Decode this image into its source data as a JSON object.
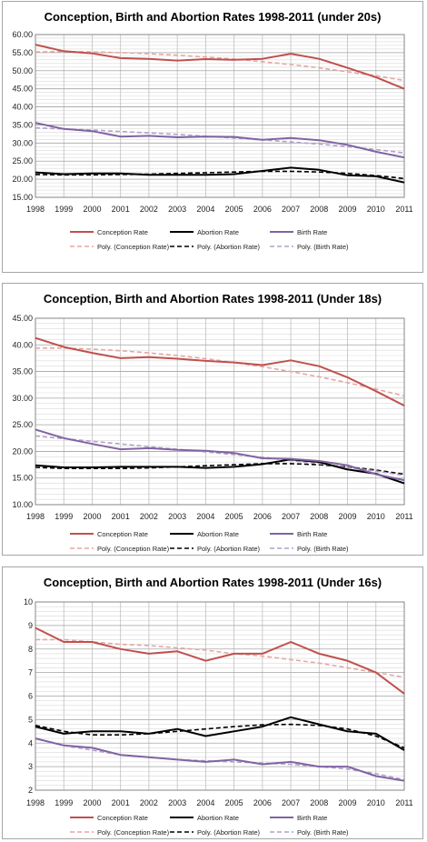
{
  "chart_data": [
    {
      "type": "line",
      "title": "Conception, Birth and Abortion Rates 1998-2011 (under 20s)",
      "x": [
        "1998",
        "1999",
        "2000",
        "2001",
        "2002",
        "2003",
        "2004",
        "2005",
        "2006",
        "2007",
        "2008",
        "2009",
        "2010",
        "2011"
      ],
      "ylim": [
        15,
        60
      ],
      "yticks": [
        "15.00",
        "20.00",
        "25.00",
        "30.00",
        "35.00",
        "40.00",
        "45.00",
        "50.00",
        "55.00",
        "60.00"
      ],
      "grid": true,
      "legend_position": "bottom",
      "series": [
        {
          "name": "Conception Rate",
          "values": [
            57.2,
            55.4,
            54.8,
            53.5,
            53.3,
            52.8,
            53.2,
            53.0,
            53.3,
            54.7,
            53.3,
            50.8,
            48.2,
            45.0
          ],
          "color": "#c0504d",
          "style": "solid"
        },
        {
          "name": "Abortion Rate",
          "values": [
            21.9,
            21.4,
            21.6,
            21.6,
            21.2,
            21.2,
            21.2,
            21.4,
            22.3,
            23.2,
            22.6,
            21.1,
            20.8,
            19.1
          ],
          "color": "#000000",
          "style": "solid"
        },
        {
          "name": "Birth Rate",
          "values": [
            35.6,
            33.9,
            33.3,
            31.8,
            32.0,
            31.6,
            31.8,
            31.7,
            30.9,
            31.4,
            30.8,
            29.5,
            27.6,
            26.0
          ],
          "color": "#8064a2",
          "style": "solid"
        },
        {
          "name": "Poly. (Conception Rate)",
          "values": [
            55.2,
            55.3,
            55.2,
            55.0,
            54.7,
            54.3,
            53.8,
            53.2,
            52.5,
            51.7,
            50.8,
            49.7,
            48.6,
            47.3
          ],
          "color": "#e6a6a4",
          "style": "dash"
        },
        {
          "name": "Poly. (Abortion Rate)",
          "values": [
            21.3,
            21.2,
            21.2,
            21.3,
            21.4,
            21.6,
            21.8,
            22.0,
            22.2,
            22.2,
            22.0,
            21.6,
            21.0,
            20.2
          ],
          "color": "#000000",
          "style": "dash"
        },
        {
          "name": "Poly. (Birth Rate)",
          "values": [
            34.2,
            33.9,
            33.6,
            33.2,
            32.8,
            32.4,
            31.9,
            31.4,
            30.9,
            30.3,
            29.7,
            29.0,
            28.2,
            27.3
          ],
          "color": "#b2a1c7",
          "style": "dash"
        }
      ]
    },
    {
      "type": "line",
      "title": "Conception, Birth and Abortion Rates 1998-2011 (Under 18s)",
      "x": [
        "1998",
        "1999",
        "2000",
        "2001",
        "2002",
        "2003",
        "2004",
        "2005",
        "2006",
        "2007",
        "2008",
        "2009",
        "2010",
        "2011"
      ],
      "ylim": [
        10,
        45
      ],
      "yticks": [
        "10.00",
        "15.00",
        "20.00",
        "25.00",
        "30.00",
        "35.00",
        "40.00",
        "45.00"
      ],
      "grid": true,
      "legend_position": "bottom",
      "series": [
        {
          "name": "Conception Rate",
          "values": [
            41.3,
            39.6,
            38.5,
            37.5,
            37.7,
            37.4,
            37.0,
            36.7,
            36.2,
            37.1,
            36.0,
            33.9,
            31.3,
            28.6
          ],
          "color": "#c0504d",
          "style": "solid"
        },
        {
          "name": "Abortion Rate",
          "values": [
            17.4,
            17.0,
            17.0,
            17.1,
            17.1,
            17.1,
            16.9,
            17.1,
            17.6,
            18.5,
            18.0,
            16.6,
            15.8,
            14.0
          ],
          "color": "#000000",
          "style": "solid"
        },
        {
          "name": "Birth Rate",
          "values": [
            24.1,
            22.5,
            21.4,
            20.4,
            20.6,
            20.3,
            20.1,
            19.7,
            18.7,
            18.6,
            18.2,
            17.4,
            15.7,
            14.6
          ],
          "color": "#8064a2",
          "style": "solid"
        },
        {
          "name": "Poly. (Conception Rate)",
          "values": [
            39.4,
            39.4,
            39.2,
            38.9,
            38.5,
            38.0,
            37.4,
            36.7,
            35.9,
            35.0,
            34.0,
            32.9,
            31.7,
            30.4
          ],
          "color": "#e6a6a4",
          "style": "dash"
        },
        {
          "name": "Poly. (Abortion Rate)",
          "values": [
            17.0,
            16.8,
            16.8,
            16.8,
            16.9,
            17.1,
            17.3,
            17.5,
            17.7,
            17.7,
            17.5,
            17.1,
            16.5,
            15.7
          ],
          "color": "#000000",
          "style": "dash"
        },
        {
          "name": "Poly. (Birth Rate)",
          "values": [
            22.9,
            22.4,
            21.9,
            21.4,
            20.9,
            20.4,
            19.9,
            19.4,
            18.9,
            18.3,
            17.7,
            17.0,
            16.3,
            15.5
          ],
          "color": "#b2a1c7",
          "style": "dash"
        }
      ]
    },
    {
      "type": "line",
      "title": "Conception, Birth and Abortion Rates 1998-2011 (Under 16s)",
      "x": [
        "1998",
        "1999",
        "2000",
        "2001",
        "2002",
        "2003",
        "2004",
        "2005",
        "2006",
        "2007",
        "2008",
        "2009",
        "2010",
        "2011"
      ],
      "ylim": [
        2,
        10
      ],
      "yticks": [
        "2",
        "3",
        "4",
        "5",
        "6",
        "7",
        "8",
        "9",
        "10"
      ],
      "grid": true,
      "legend_position": "bottom",
      "series": [
        {
          "name": "Conception Rate",
          "values": [
            8.9,
            8.3,
            8.3,
            8.0,
            7.8,
            7.9,
            7.5,
            7.8,
            7.8,
            8.3,
            7.8,
            7.5,
            7.0,
            6.1
          ],
          "color": "#c0504d",
          "style": "solid"
        },
        {
          "name": "Abortion Rate",
          "values": [
            4.7,
            4.4,
            4.5,
            4.5,
            4.4,
            4.6,
            4.3,
            4.5,
            4.7,
            5.1,
            4.8,
            4.5,
            4.4,
            3.7
          ],
          "color": "#000000",
          "style": "solid"
        },
        {
          "name": "Birth Rate",
          "values": [
            4.2,
            3.9,
            3.8,
            3.5,
            3.4,
            3.3,
            3.2,
            3.3,
            3.1,
            3.2,
            3.0,
            3.0,
            2.6,
            2.4
          ],
          "color": "#8064a2",
          "style": "solid"
        },
        {
          "name": "Poly. (Conception Rate)",
          "values": [
            8.4,
            8.4,
            8.3,
            8.2,
            8.15,
            8.05,
            7.95,
            7.8,
            7.7,
            7.55,
            7.4,
            7.2,
            7.0,
            6.8
          ],
          "color": "#e6a6a4",
          "style": "dash"
        },
        {
          "name": "Poly. (Abortion Rate)",
          "values": [
            4.75,
            4.5,
            4.35,
            4.35,
            4.4,
            4.5,
            4.6,
            4.7,
            4.78,
            4.8,
            4.75,
            4.6,
            4.3,
            3.8
          ],
          "color": "#000000",
          "style": "dash"
        },
        {
          "name": "Poly. (Birth Rate)",
          "values": [
            4.2,
            3.9,
            3.7,
            3.5,
            3.4,
            3.3,
            3.25,
            3.2,
            3.15,
            3.1,
            3.0,
            2.9,
            2.7,
            2.45
          ],
          "color": "#b2a1c7",
          "style": "dash"
        }
      ]
    }
  ]
}
